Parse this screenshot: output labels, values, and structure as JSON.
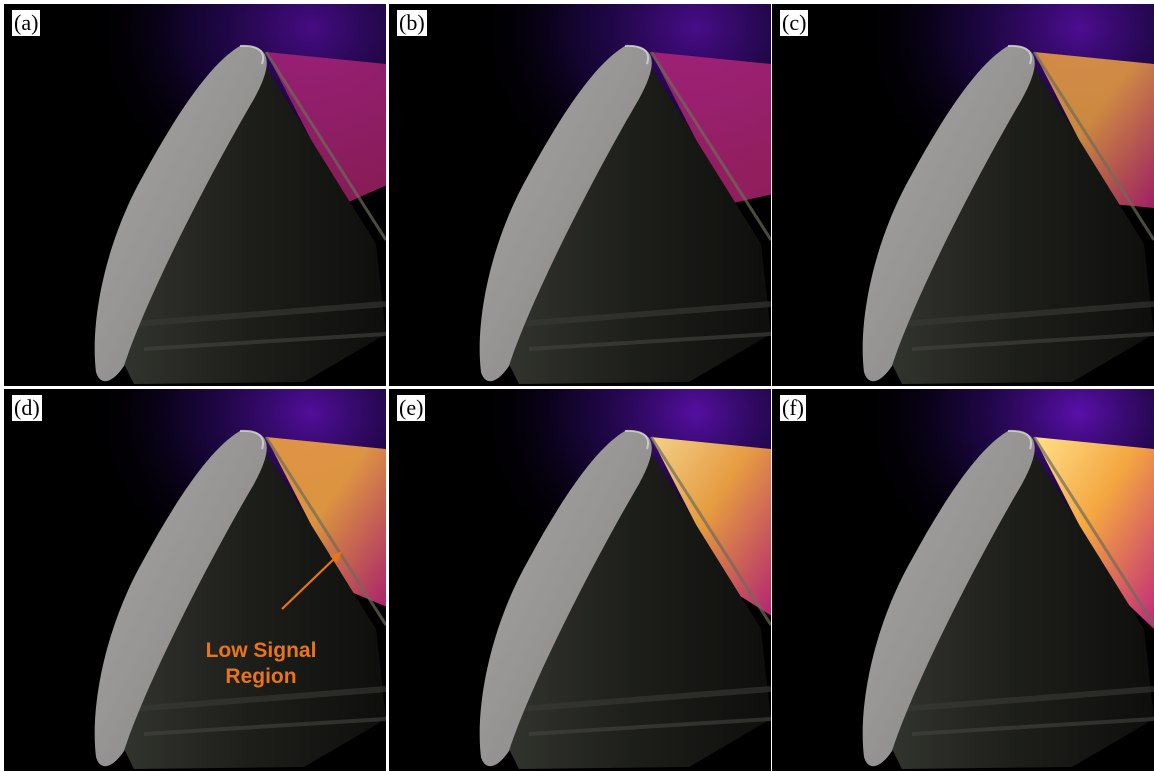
{
  "figure": {
    "background": "#ffffff",
    "panels": [
      {
        "label": "(a)",
        "glow_level": 0.35
      },
      {
        "label": "(b)",
        "glow_level": 0.45
      },
      {
        "label": "(c)",
        "glow_level": 0.6
      },
      {
        "label": "(d)",
        "glow_level": 0.75
      },
      {
        "label": "(e)",
        "glow_level": 0.85
      },
      {
        "label": "(f)",
        "glow_level": 1.0
      }
    ],
    "annotation": {
      "text_line1": "Low Signal",
      "text_line2": "Region",
      "color": "#e8741c"
    }
  },
  "colors": {
    "shield_light": "#a9a6a6",
    "shield_dark": "#5f5d5d",
    "cone_dark": "#1d1e1a",
    "glow_violet": "#6a12c8",
    "glow_magenta": "#c0287a",
    "glow_orange": "#f4a640",
    "glow_yellow": "#ffe08a"
  }
}
